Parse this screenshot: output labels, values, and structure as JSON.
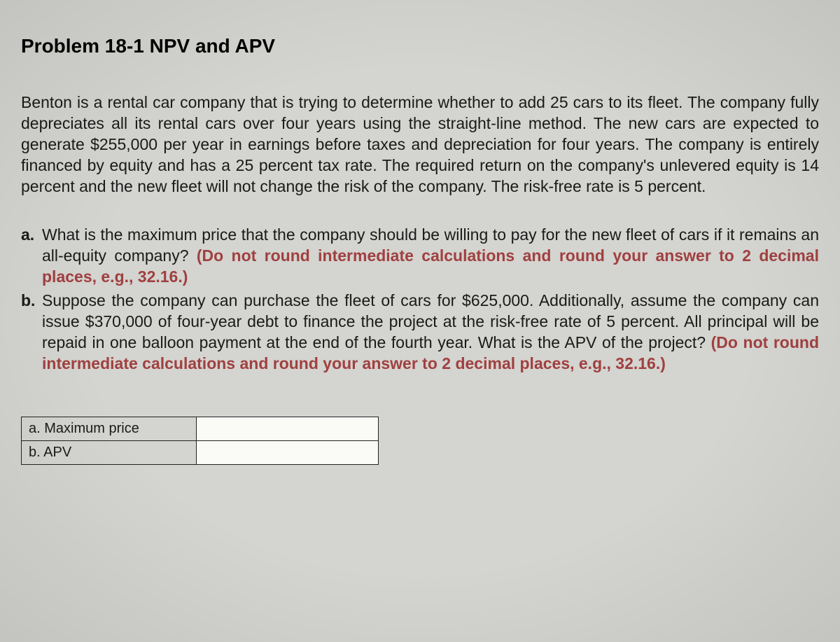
{
  "title": "Problem 18-1 NPV and APV",
  "intro": "Benton is a rental car company that is trying to determine whether to add 25 cars to its fleet. The company fully depreciates all its rental cars over four years using the straight-line method. The new cars are expected to generate $255,000 per year in earnings before taxes and depreciation for four years. The company is entirely financed by equity and has a 25 percent tax rate. The required return on the company's unlevered equity is 14 percent and the new fleet will not change the risk of the company. The risk-free rate is 5 percent.",
  "questions": {
    "a": {
      "marker": "a.",
      "text": "What is the maximum price that the company should be willing to pay for the new fleet of cars if it remains an all-equity company? ",
      "hint": "(Do not round intermediate calculations and round your answer to 2 decimal places, e.g., 32.16.)"
    },
    "b": {
      "marker": "b.",
      "text": "Suppose the company can purchase the fleet of cars for $625,000. Additionally, assume the company can issue $370,000 of four-year debt to finance the project at the risk-free rate of 5 percent. All principal will be repaid in one balloon payment at the end of the fourth year. What is the APV of the project? ",
      "hint": "(Do not round intermediate calculations and round your answer to 2 decimal places, e.g., 32.16.)"
    }
  },
  "answer_table": {
    "rows": [
      {
        "label": "a. Maximum price",
        "value": ""
      },
      {
        "label": "b. APV",
        "value": ""
      }
    ]
  },
  "style": {
    "background_color": "#d4d4d0",
    "text_color": "#1a1a1a",
    "hint_color": "#a04040",
    "title_fontsize": 28,
    "body_fontsize": 23,
    "table_fontsize": 20,
    "font_family": "Arial, Helvetica, sans-serif",
    "table_border_color": "#222222",
    "table_input_bg": "#fafaf7"
  }
}
